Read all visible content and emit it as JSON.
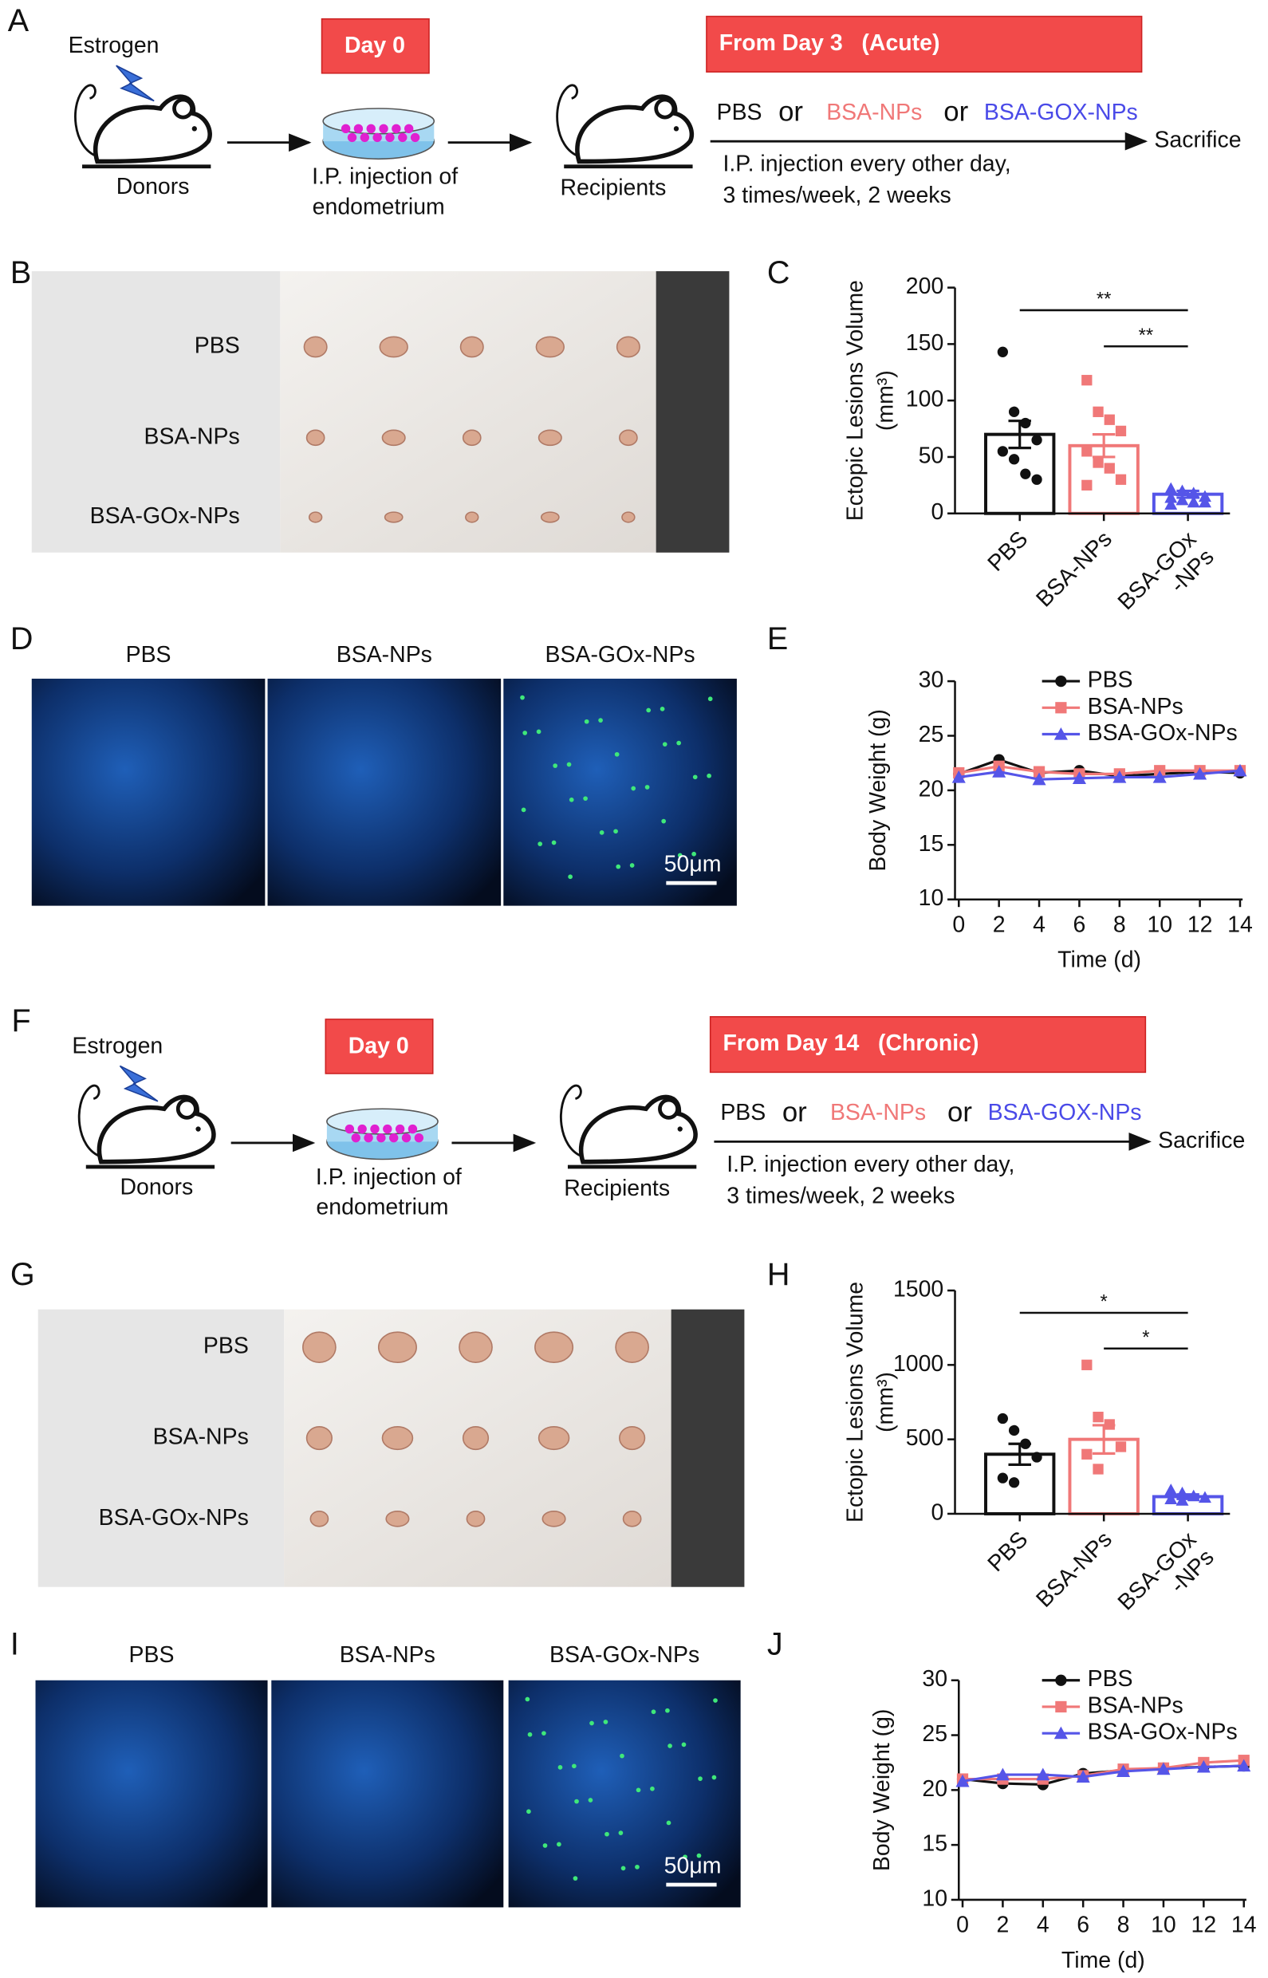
{
  "schemes": [
    {
      "label": "A",
      "estrogen": "Estrogen",
      "donors": "Donors",
      "day0": "Day 0",
      "injection": [
        "I.P. injection of",
        "endometrium"
      ],
      "recipients": "Recipients",
      "treatment": "From Day 3   (Acute)",
      "treatments": [
        "PBS",
        "or",
        "BSA-NPs",
        "or",
        "BSA-GOX-NPs"
      ],
      "sacrifice": "Sacrifice",
      "schedule": [
        "I.P. injection every other day,",
        "3 times/week, 2 weeks"
      ]
    },
    {
      "label": "F",
      "estrogen": "Estrogen",
      "donors": "Donors",
      "day0": "Day 0",
      "injection": [
        "I.P. injection of",
        "endometrium"
      ],
      "recipients": "Recipients",
      "treatment": "From Day 14   (Chronic)",
      "treatments": [
        "PBS",
        "or",
        "BSA-NPs",
        "or",
        "BSA-GOX-NPs"
      ],
      "sacrifice": "Sacrifice",
      "schedule": [
        "I.P. injection every other day,",
        "3 times/week, 2 weeks"
      ]
    }
  ],
  "photos": [
    {
      "label": "B",
      "rows": [
        "PBS",
        "BSA-NPs",
        "BSA-GOx-NPs"
      ]
    },
    {
      "label": "G",
      "rows": [
        "PBS",
        "BSA-NPs",
        "BSA-GOx-NPs"
      ]
    }
  ],
  "micrographs": [
    {
      "label": "D",
      "columns": [
        "PBS",
        "BSA-NPs",
        "BSA-GOx-NPs"
      ],
      "scale": "50μm"
    },
    {
      "label": "I",
      "columns": [
        "PBS",
        "BSA-NPs",
        "BSA-GOx-NPs"
      ],
      "scale": "50μm"
    }
  ],
  "chart_data": [
    {
      "type": "bar",
      "panel": "C",
      "ylabel": "Ectopic Lesions Volume",
      "ylabel_unit": "(mm³)",
      "categories": [
        "PBS",
        "BSA-NPs",
        "BSA-GOx\n-NPs"
      ],
      "colors": [
        "#111111",
        "#f07878",
        "#5555e8"
      ],
      "markers": [
        "circle",
        "square",
        "triangle"
      ],
      "values": [
        70,
        60,
        17
      ],
      "errors": [
        12,
        10,
        3
      ],
      "points": [
        [
          143,
          90,
          80,
          65,
          55,
          48,
          35,
          30
        ],
        [
          118,
          90,
          83,
          73,
          55,
          45,
          40,
          30,
          25
        ],
        [
          22,
          20,
          18,
          15,
          14,
          12,
          10,
          10,
          8
        ]
      ],
      "annotations": [
        "**",
        "**"
      ],
      "ylim": [
        0,
        200
      ],
      "yticks": [
        0,
        50,
        100,
        150,
        200
      ]
    },
    {
      "type": "line",
      "panel": "E",
      "xlabel": "Time (d)",
      "ylabel": "Body Weight (g)",
      "x": [
        0,
        2,
        4,
        6,
        8,
        10,
        12,
        14
      ],
      "xlim": [
        0,
        14
      ],
      "xticks": [
        0,
        2,
        4,
        6,
        8,
        10,
        12,
        14
      ],
      "ylim": [
        10,
        30
      ],
      "yticks": [
        10,
        15,
        20,
        25,
        30
      ],
      "series": [
        {
          "name": "PBS",
          "color": "#111111",
          "marker": "circle",
          "values": [
            21.5,
            22.8,
            21.6,
            21.8,
            21.3,
            21.5,
            21.7,
            21.6
          ]
        },
        {
          "name": "BSA-NPs",
          "color": "#f07878",
          "marker": "square",
          "values": [
            21.6,
            22.2,
            21.7,
            21.5,
            21.5,
            21.8,
            21.8,
            21.8
          ]
        },
        {
          "name": "BSA-GOx-NPs",
          "color": "#5555e8",
          "marker": "triangle",
          "values": [
            21.2,
            21.7,
            21.0,
            21.1,
            21.2,
            21.2,
            21.5,
            21.8
          ]
        }
      ]
    },
    {
      "type": "bar",
      "panel": "H",
      "ylabel": "Ectopic Lesions Volume",
      "ylabel_unit": "(mm³)",
      "categories": [
        "PBS",
        "BSA-NPs",
        "BSA-GOx\n-NPs"
      ],
      "colors": [
        "#111111",
        "#f07878",
        "#5555e8"
      ],
      "markers": [
        "circle",
        "square",
        "triangle"
      ],
      "values": [
        400,
        500,
        115
      ],
      "errors": [
        70,
        95,
        15
      ],
      "points": [
        [
          640,
          560,
          470,
          380,
          240,
          210
        ],
        [
          1000,
          650,
          600,
          450,
          400,
          300
        ],
        [
          160,
          140,
          120,
          110,
          100,
          90
        ]
      ],
      "annotations": [
        "*",
        "*"
      ],
      "ylim": [
        0,
        1500
      ],
      "yticks": [
        0,
        500,
        1000,
        1500
      ]
    },
    {
      "type": "line",
      "panel": "J",
      "xlabel": "Time (d)",
      "ylabel": "Body Weight (g)",
      "x": [
        0,
        2,
        4,
        6,
        8,
        10,
        12,
        14
      ],
      "xlim": [
        0,
        14
      ],
      "xticks": [
        0,
        2,
        4,
        6,
        8,
        10,
        12,
        14
      ],
      "ylim": [
        10,
        30
      ],
      "yticks": [
        10,
        15,
        20,
        25,
        30
      ],
      "series": [
        {
          "name": "PBS",
          "color": "#111111",
          "marker": "circle",
          "values": [
            21.0,
            20.6,
            20.5,
            21.5,
            21.8,
            22.0,
            22.1,
            22.2
          ]
        },
        {
          "name": "BSA-NPs",
          "color": "#f07878",
          "marker": "square",
          "values": [
            21.0,
            21.0,
            21.0,
            21.3,
            21.9,
            22.0,
            22.5,
            22.7
          ]
        },
        {
          "name": "BSA-GOx-NPs",
          "color": "#5555e8",
          "marker": "triangle",
          "values": [
            20.8,
            21.4,
            21.4,
            21.2,
            21.7,
            21.9,
            22.1,
            22.2
          ]
        }
      ]
    }
  ]
}
